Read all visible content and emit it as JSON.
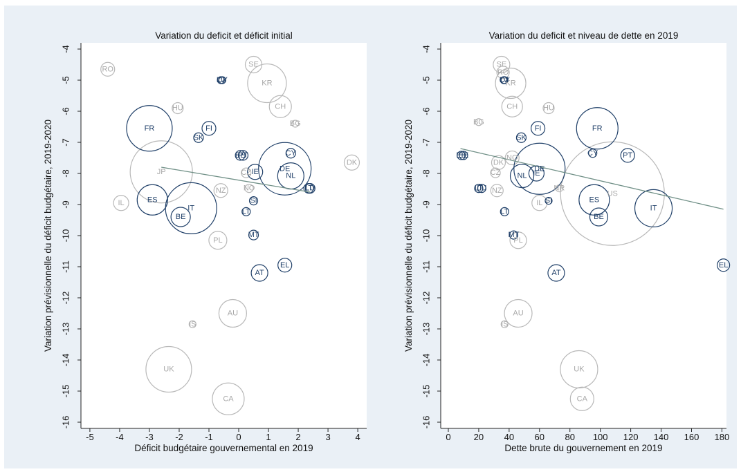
{
  "chart_data": [
    {
      "type": "scatter",
      "title": "Variation du deficit et déficit initial",
      "xlabel": "Déficit budgétaire gouvernemental en 2019",
      "ylabel": "Variation prévisionnelle du déficit budgétaire, 2019-2020",
      "xlim": [
        -5.3,
        4.3
      ],
      "ylim": [
        -16.2,
        -3.8
      ],
      "xticks": [
        "-5",
        "-4",
        "-3",
        "-2",
        "-1",
        "0",
        "1",
        "2",
        "3",
        "4"
      ],
      "yticks": [
        "-4",
        "-5",
        "-6",
        "-7",
        "-8",
        "-9",
        "-10",
        "-11",
        "-12",
        "-13",
        "-14",
        "-15",
        "-16"
      ],
      "grid": false,
      "fit_line": {
        "x": [
          -2.6,
          2.4
        ],
        "y": [
          -7.8,
          -8.6
        ]
      },
      "points": [
        {
          "label": "RO",
          "x": -4.4,
          "y": -4.65,
          "size": 10,
          "group": "other"
        },
        {
          "label": "LV",
          "x": -0.6,
          "y": -5.0,
          "size": 5,
          "group": "eu"
        },
        {
          "label": "CY",
          "x": -0.55,
          "y": -5.0,
          "size": 5,
          "group": "eu"
        },
        {
          "label": "SE",
          "x": 0.5,
          "y": -4.5,
          "size": 12,
          "group": "other"
        },
        {
          "label": "KR",
          "x": 0.95,
          "y": -5.1,
          "size": 28,
          "group": "other"
        },
        {
          "label": "HU",
          "x": -2.05,
          "y": -5.9,
          "size": 8,
          "group": "other"
        },
        {
          "label": "CH",
          "x": 1.4,
          "y": -5.85,
          "size": 16,
          "group": "other"
        },
        {
          "label": "BG",
          "x": 1.9,
          "y": -6.4,
          "size": 5,
          "group": "other"
        },
        {
          "label": "FR",
          "x": -3.0,
          "y": -6.55,
          "size": 33,
          "group": "eu"
        },
        {
          "label": "FI",
          "x": -1.0,
          "y": -6.55,
          "size": 10,
          "group": "eu"
        },
        {
          "label": "SK",
          "x": -1.35,
          "y": -6.85,
          "size": 7,
          "group": "eu"
        },
        {
          "label": "EE",
          "x": 0.05,
          "y": -7.42,
          "size": 7,
          "group": "eu"
        },
        {
          "label": "PT",
          "x": 0.15,
          "y": -7.42,
          "size": 7,
          "group": "eu"
        },
        {
          "label": "CY",
          "x": 1.75,
          "y": -7.35,
          "size": 7,
          "group": "eu"
        },
        {
          "label": "DK",
          "x": 3.8,
          "y": -7.65,
          "size": 11,
          "group": "other"
        },
        {
          "label": "JP",
          "x": -2.6,
          "y": -7.95,
          "size": 45,
          "group": "other"
        },
        {
          "label": "CZ",
          "x": 0.25,
          "y": -7.98,
          "size": 7,
          "group": "other"
        },
        {
          "label": "IE",
          "x": 0.55,
          "y": -7.95,
          "size": 11,
          "group": "eu"
        },
        {
          "label": "DE",
          "x": 1.55,
          "y": -7.85,
          "size": 38,
          "group": "eu"
        },
        {
          "label": "NL",
          "x": 1.75,
          "y": -8.08,
          "size": 19,
          "group": "eu"
        },
        {
          "label": "NZ",
          "x": -0.6,
          "y": -8.55,
          "size": 10,
          "group": "other"
        },
        {
          "label": "NO",
          "x": 0.35,
          "y": -8.48,
          "size": 6,
          "group": "other"
        },
        {
          "label": "LT",
          "x": 2.35,
          "y": -8.48,
          "size": 7,
          "group": "eu"
        },
        {
          "label": "LU",
          "x": 2.4,
          "y": -8.48,
          "size": 7,
          "group": "eu"
        },
        {
          "label": "IL",
          "x": -3.95,
          "y": -8.95,
          "size": 11,
          "group": "other"
        },
        {
          "label": "ES",
          "x": -2.9,
          "y": -8.85,
          "size": 22,
          "group": "eu"
        },
        {
          "label": "IT",
          "x": -1.6,
          "y": -9.12,
          "size": 37,
          "group": "eu"
        },
        {
          "label": "BE",
          "x": -1.95,
          "y": -9.4,
          "size": 14,
          "group": "eu"
        },
        {
          "label": "SI",
          "x": 0.5,
          "y": -8.88,
          "size": 6,
          "group": "eu"
        },
        {
          "label": "LT",
          "x": 0.25,
          "y": -9.23,
          "size": 6,
          "group": "eu"
        },
        {
          "label": "MT",
          "x": 0.5,
          "y": -9.98,
          "size": 7,
          "group": "eu"
        },
        {
          "label": "PL",
          "x": -0.7,
          "y": -10.15,
          "size": 13,
          "group": "other"
        },
        {
          "label": "EL",
          "x": 1.55,
          "y": -10.95,
          "size": 10,
          "group": "eu"
        },
        {
          "label": "AT",
          "x": 0.7,
          "y": -11.2,
          "size": 12,
          "group": "eu"
        },
        {
          "label": "AU",
          "x": -0.2,
          "y": -12.5,
          "size": 20,
          "group": "other"
        },
        {
          "label": "IS",
          "x": -1.55,
          "y": -12.85,
          "size": 5,
          "group": "other"
        },
        {
          "label": "UK",
          "x": -2.35,
          "y": -14.3,
          "size": 33,
          "group": "other"
        },
        {
          "label": "CA",
          "x": -0.35,
          "y": -15.25,
          "size": 23,
          "group": "other"
        }
      ]
    },
    {
      "type": "scatter",
      "title": "Variation du deficit et niveau de dette en 2019",
      "xlabel": "Dette brute du gouvernement en 2019",
      "ylabel": "Variation prévisionnelle du déficit budgétaire, 2019-2020",
      "xlim": [
        -5,
        183
      ],
      "ylim": [
        -16.2,
        -3.8
      ],
      "xticks": [
        "0",
        "20",
        "40",
        "60",
        "80",
        "100",
        "120",
        "140",
        "160",
        "180"
      ],
      "yticks": [
        "-4",
        "-5",
        "-6",
        "-7",
        "-8",
        "-9",
        "-10",
        "-11",
        "-12",
        "-13",
        "-14",
        "-15",
        "-16"
      ],
      "grid": false,
      "fit_line": {
        "x": [
          8,
          181
        ],
        "y": [
          -7.2,
          -9.15
        ]
      },
      "points": [
        {
          "label": "SE",
          "x": 35,
          "y": -4.5,
          "size": 12,
          "group": "other"
        },
        {
          "label": "RO",
          "x": 36,
          "y": -4.75,
          "size": 9,
          "group": "other"
        },
        {
          "label": "LV",
          "x": 36.5,
          "y": -5.0,
          "size": 5,
          "group": "eu"
        },
        {
          "label": "CY",
          "x": 37,
          "y": -5.0,
          "size": 5,
          "group": "eu"
        },
        {
          "label": "KR",
          "x": 41,
          "y": -5.1,
          "size": 22,
          "group": "other"
        },
        {
          "label": "CH",
          "x": 42,
          "y": -5.85,
          "size": 15,
          "group": "other"
        },
        {
          "label": "HU",
          "x": 66,
          "y": -5.9,
          "size": 8,
          "group": "other"
        },
        {
          "label": "BG",
          "x": 20,
          "y": -6.35,
          "size": 5,
          "group": "other"
        },
        {
          "label": "FI",
          "x": 59,
          "y": -6.55,
          "size": 10,
          "group": "eu"
        },
        {
          "label": "FR",
          "x": 98,
          "y": -6.55,
          "size": 30,
          "group": "eu"
        },
        {
          "label": "SK",
          "x": 48,
          "y": -6.85,
          "size": 7,
          "group": "eu"
        },
        {
          "label": "EE",
          "x": 8.5,
          "y": -7.42,
          "size": 6,
          "group": "eu"
        },
        {
          "label": "EE",
          "x": 10,
          "y": -7.42,
          "size": 6,
          "group": "eu"
        },
        {
          "label": "CY",
          "x": 95,
          "y": -7.35,
          "size": 6,
          "group": "eu"
        },
        {
          "label": "PT",
          "x": 118,
          "y": -7.42,
          "size": 10,
          "group": "eu"
        },
        {
          "label": "NO",
          "x": 42,
          "y": -7.5,
          "size": 10,
          "group": "other"
        },
        {
          "label": "DK",
          "x": 33,
          "y": -7.65,
          "size": 10,
          "group": "other"
        },
        {
          "label": "DE",
          "x": 60,
          "y": -7.85,
          "size": 37,
          "group": "eu"
        },
        {
          "label": "IE",
          "x": 58,
          "y": -8.0,
          "size": 11,
          "group": "eu"
        },
        {
          "label": "NL",
          "x": 48.5,
          "y": -8.08,
          "size": 17,
          "group": "eu"
        },
        {
          "label": "CZ",
          "x": 31,
          "y": -7.98,
          "size": 7,
          "group": "other"
        },
        {
          "label": "LU",
          "x": 22,
          "y": -8.48,
          "size": 6,
          "group": "eu"
        },
        {
          "label": "LT",
          "x": 20,
          "y": -8.48,
          "size": 6,
          "group": "eu"
        },
        {
          "label": "NZ",
          "x": 32,
          "y": -8.55,
          "size": 9,
          "group": "other"
        },
        {
          "label": "NR",
          "x": 73,
          "y": -8.48,
          "size": 5,
          "group": "other"
        },
        {
          "label": "US",
          "x": 108,
          "y": -8.65,
          "size": 75,
          "group": "other"
        },
        {
          "label": "IL",
          "x": 60,
          "y": -8.95,
          "size": 11,
          "group": "other"
        },
        {
          "label": "SI",
          "x": 66,
          "y": -8.88,
          "size": 5,
          "group": "eu"
        },
        {
          "label": "ES",
          "x": 96,
          "y": -8.85,
          "size": 22,
          "group": "eu"
        },
        {
          "label": "IT",
          "x": 135,
          "y": -9.12,
          "size": 27,
          "group": "eu"
        },
        {
          "label": "LT",
          "x": 37,
          "y": -9.23,
          "size": 6,
          "group": "eu"
        },
        {
          "label": "BE",
          "x": 99,
          "y": -9.4,
          "size": 13,
          "group": "eu"
        },
        {
          "label": "MT",
          "x": 43,
          "y": -9.98,
          "size": 6,
          "group": "eu"
        },
        {
          "label": "PL",
          "x": 46,
          "y": -10.15,
          "size": 12,
          "group": "other"
        },
        {
          "label": "EL",
          "x": 181,
          "y": -10.95,
          "size": 9,
          "group": "eu"
        },
        {
          "label": "AT",
          "x": 71,
          "y": -11.2,
          "size": 12,
          "group": "eu"
        },
        {
          "label": "AU",
          "x": 46,
          "y": -12.5,
          "size": 20,
          "group": "other"
        },
        {
          "label": "IS",
          "x": 37,
          "y": -12.85,
          "size": 5,
          "group": "other"
        },
        {
          "label": "UK",
          "x": 86,
          "y": -14.3,
          "size": 27,
          "group": "other"
        },
        {
          "label": "CA",
          "x": 88,
          "y": -15.25,
          "size": 17,
          "group": "other"
        }
      ]
    }
  ],
  "colors": {
    "eu": "#1f3f68",
    "other": "#b8b8b8",
    "fit_line": "#6f8f86",
    "frame": "#eaf0f6",
    "plot_bg": "#ffffff"
  }
}
